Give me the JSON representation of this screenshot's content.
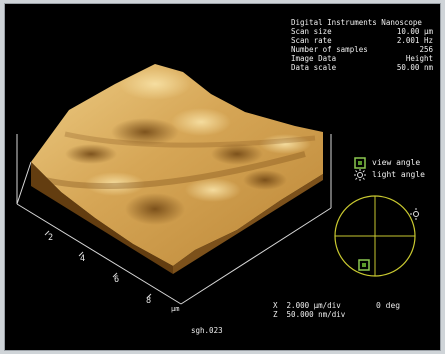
{
  "info": {
    "title": "Digital Instruments Nanoscope",
    "rows": [
      {
        "label": "Scan size",
        "value": "10.00 µm"
      },
      {
        "label": "Scan rate",
        "value": "2.001 Hz"
      },
      {
        "label": "Number of samples",
        "value": "256"
      },
      {
        "label": "Image Data",
        "value": "Height"
      },
      {
        "label": "Data scale",
        "value": "50.00 nm"
      }
    ]
  },
  "axis": {
    "ticks": [
      "2",
      "4",
      "6",
      "8"
    ],
    "unit": "µm"
  },
  "legend": {
    "view_label": "view angle",
    "light_label": "light angle",
    "angle_label": "0 deg"
  },
  "scale": {
    "x_label": "X",
    "x_value": "2.000 µm/div",
    "z_label": "Z",
    "z_value": "50.000 nm/div"
  },
  "file_name": "sgh.023",
  "colors": {
    "surface_light": "#e8c278",
    "surface_mid": "#c4923c",
    "surface_dark": "#6e4412",
    "legend_green": "#8cc850",
    "circle": "#c8c830"
  }
}
